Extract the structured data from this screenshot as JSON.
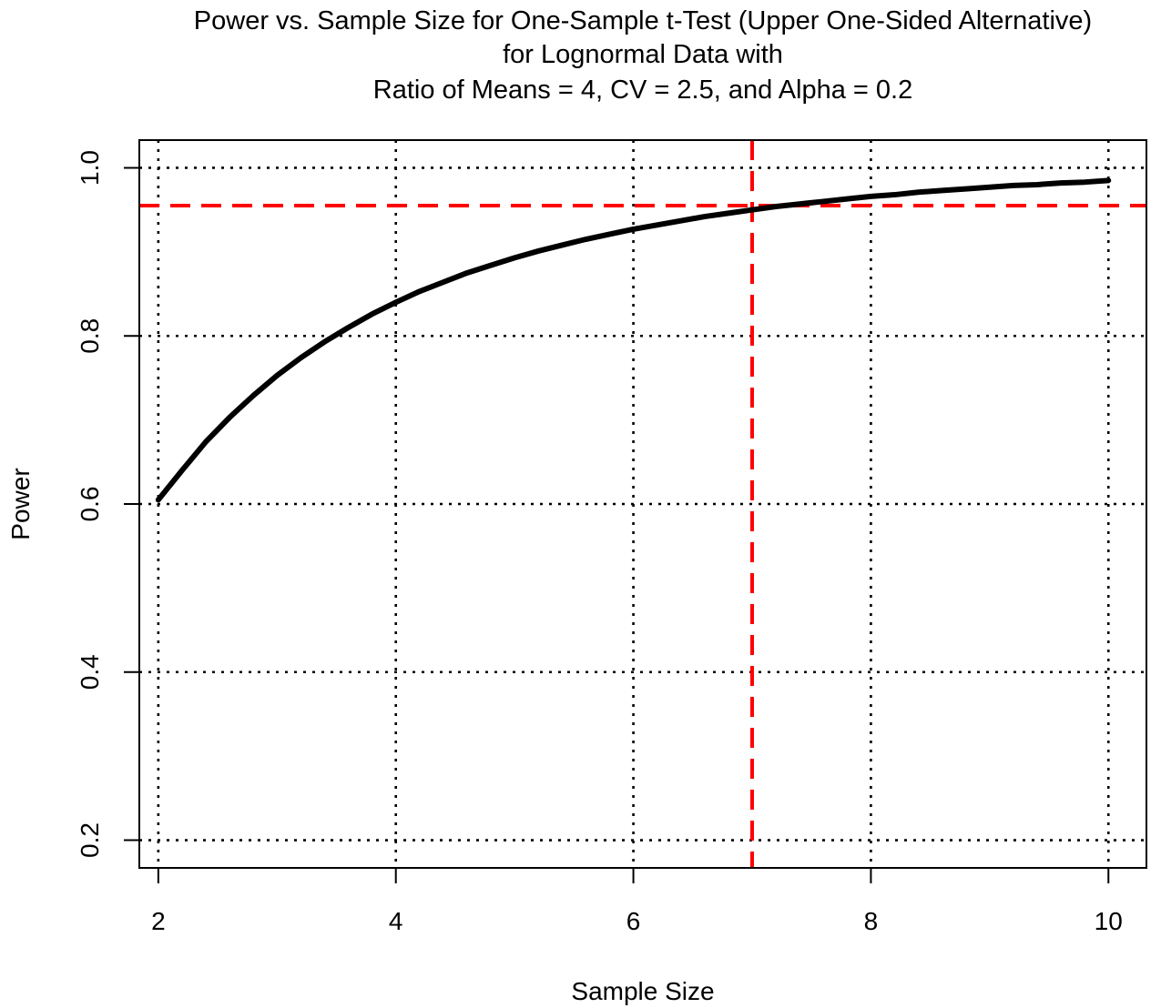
{
  "chart_data": {
    "type": "line",
    "title": [
      "Power vs. Sample Size for One-Sample t-Test (Upper One-Sided Alternative)",
      "for Lognormal Data with",
      "Ratio of Means = 4, CV = 2.5, and Alpha = 0.2"
    ],
    "xlabel": "Sample Size",
    "ylabel": "Power",
    "xlim": [
      1.84,
      10.32
    ],
    "ylim": [
      0.167,
      1.033
    ],
    "x_ticks": [
      2,
      4,
      6,
      8,
      10
    ],
    "x_tick_labels": [
      "2",
      "4",
      "6",
      "8",
      "10"
    ],
    "y_ticks": [
      0.2,
      0.4,
      0.6,
      0.8,
      1.0
    ],
    "y_tick_labels": [
      "0.2",
      "0.4",
      "0.6",
      "0.8",
      "1.0"
    ],
    "grid": true,
    "series": [
      {
        "color": "#000000",
        "x": [
          2,
          2.2,
          2.4,
          2.6,
          2.8,
          3,
          3.2,
          3.4,
          3.6,
          3.8,
          4,
          4.2,
          4.4,
          4.6,
          4.8,
          5,
          5.2,
          5.4,
          5.6,
          5.8,
          6,
          6.2,
          6.4,
          6.6,
          6.8,
          7,
          7.2,
          7.4,
          7.6,
          7.8,
          8,
          8.2,
          8.4,
          8.6,
          8.8,
          9,
          9.2,
          9.4,
          9.6,
          9.8,
          10
        ],
        "y": [
          0.605,
          0.64,
          0.674,
          0.703,
          0.729,
          0.753,
          0.774,
          0.793,
          0.81,
          0.826,
          0.84,
          0.853,
          0.864,
          0.875,
          0.884,
          0.893,
          0.901,
          0.908,
          0.915,
          0.921,
          0.927,
          0.932,
          0.937,
          0.942,
          0.946,
          0.95,
          0.954,
          0.957,
          0.96,
          0.963,
          0.966,
          0.968,
          0.971,
          0.973,
          0.975,
          0.977,
          0.979,
          0.98,
          0.982,
          0.983,
          0.985
        ]
      }
    ],
    "reference_lines": {
      "color": "#ff0000",
      "vertical_x": 7,
      "horizontal_y": 0.955
    }
  }
}
